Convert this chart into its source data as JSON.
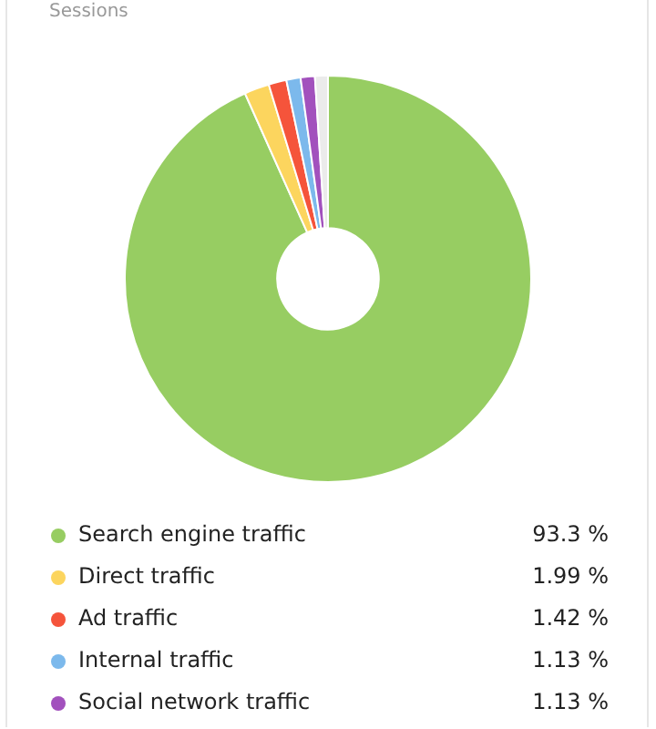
{
  "chart_data": {
    "type": "donut",
    "title": "Sessions",
    "categories": [
      "Search engine traffic",
      "Direct traffic",
      "Ad traffic",
      "Internal traffic",
      "Social network traffic",
      null
    ],
    "values": [
      93.3,
      1.99,
      1.42,
      1.13,
      1.13,
      1.03
    ],
    "colors": [
      "#97cd62",
      "#fcd55e",
      "#f5543b",
      "#7cb9ec",
      "#a251bd",
      "#ebebeb"
    ],
    "value_labels": [
      "93.3 %",
      "1.99 %",
      "1.42 %",
      "1.13 %",
      "1.13 %",
      null
    ],
    "legend": "bottom"
  }
}
